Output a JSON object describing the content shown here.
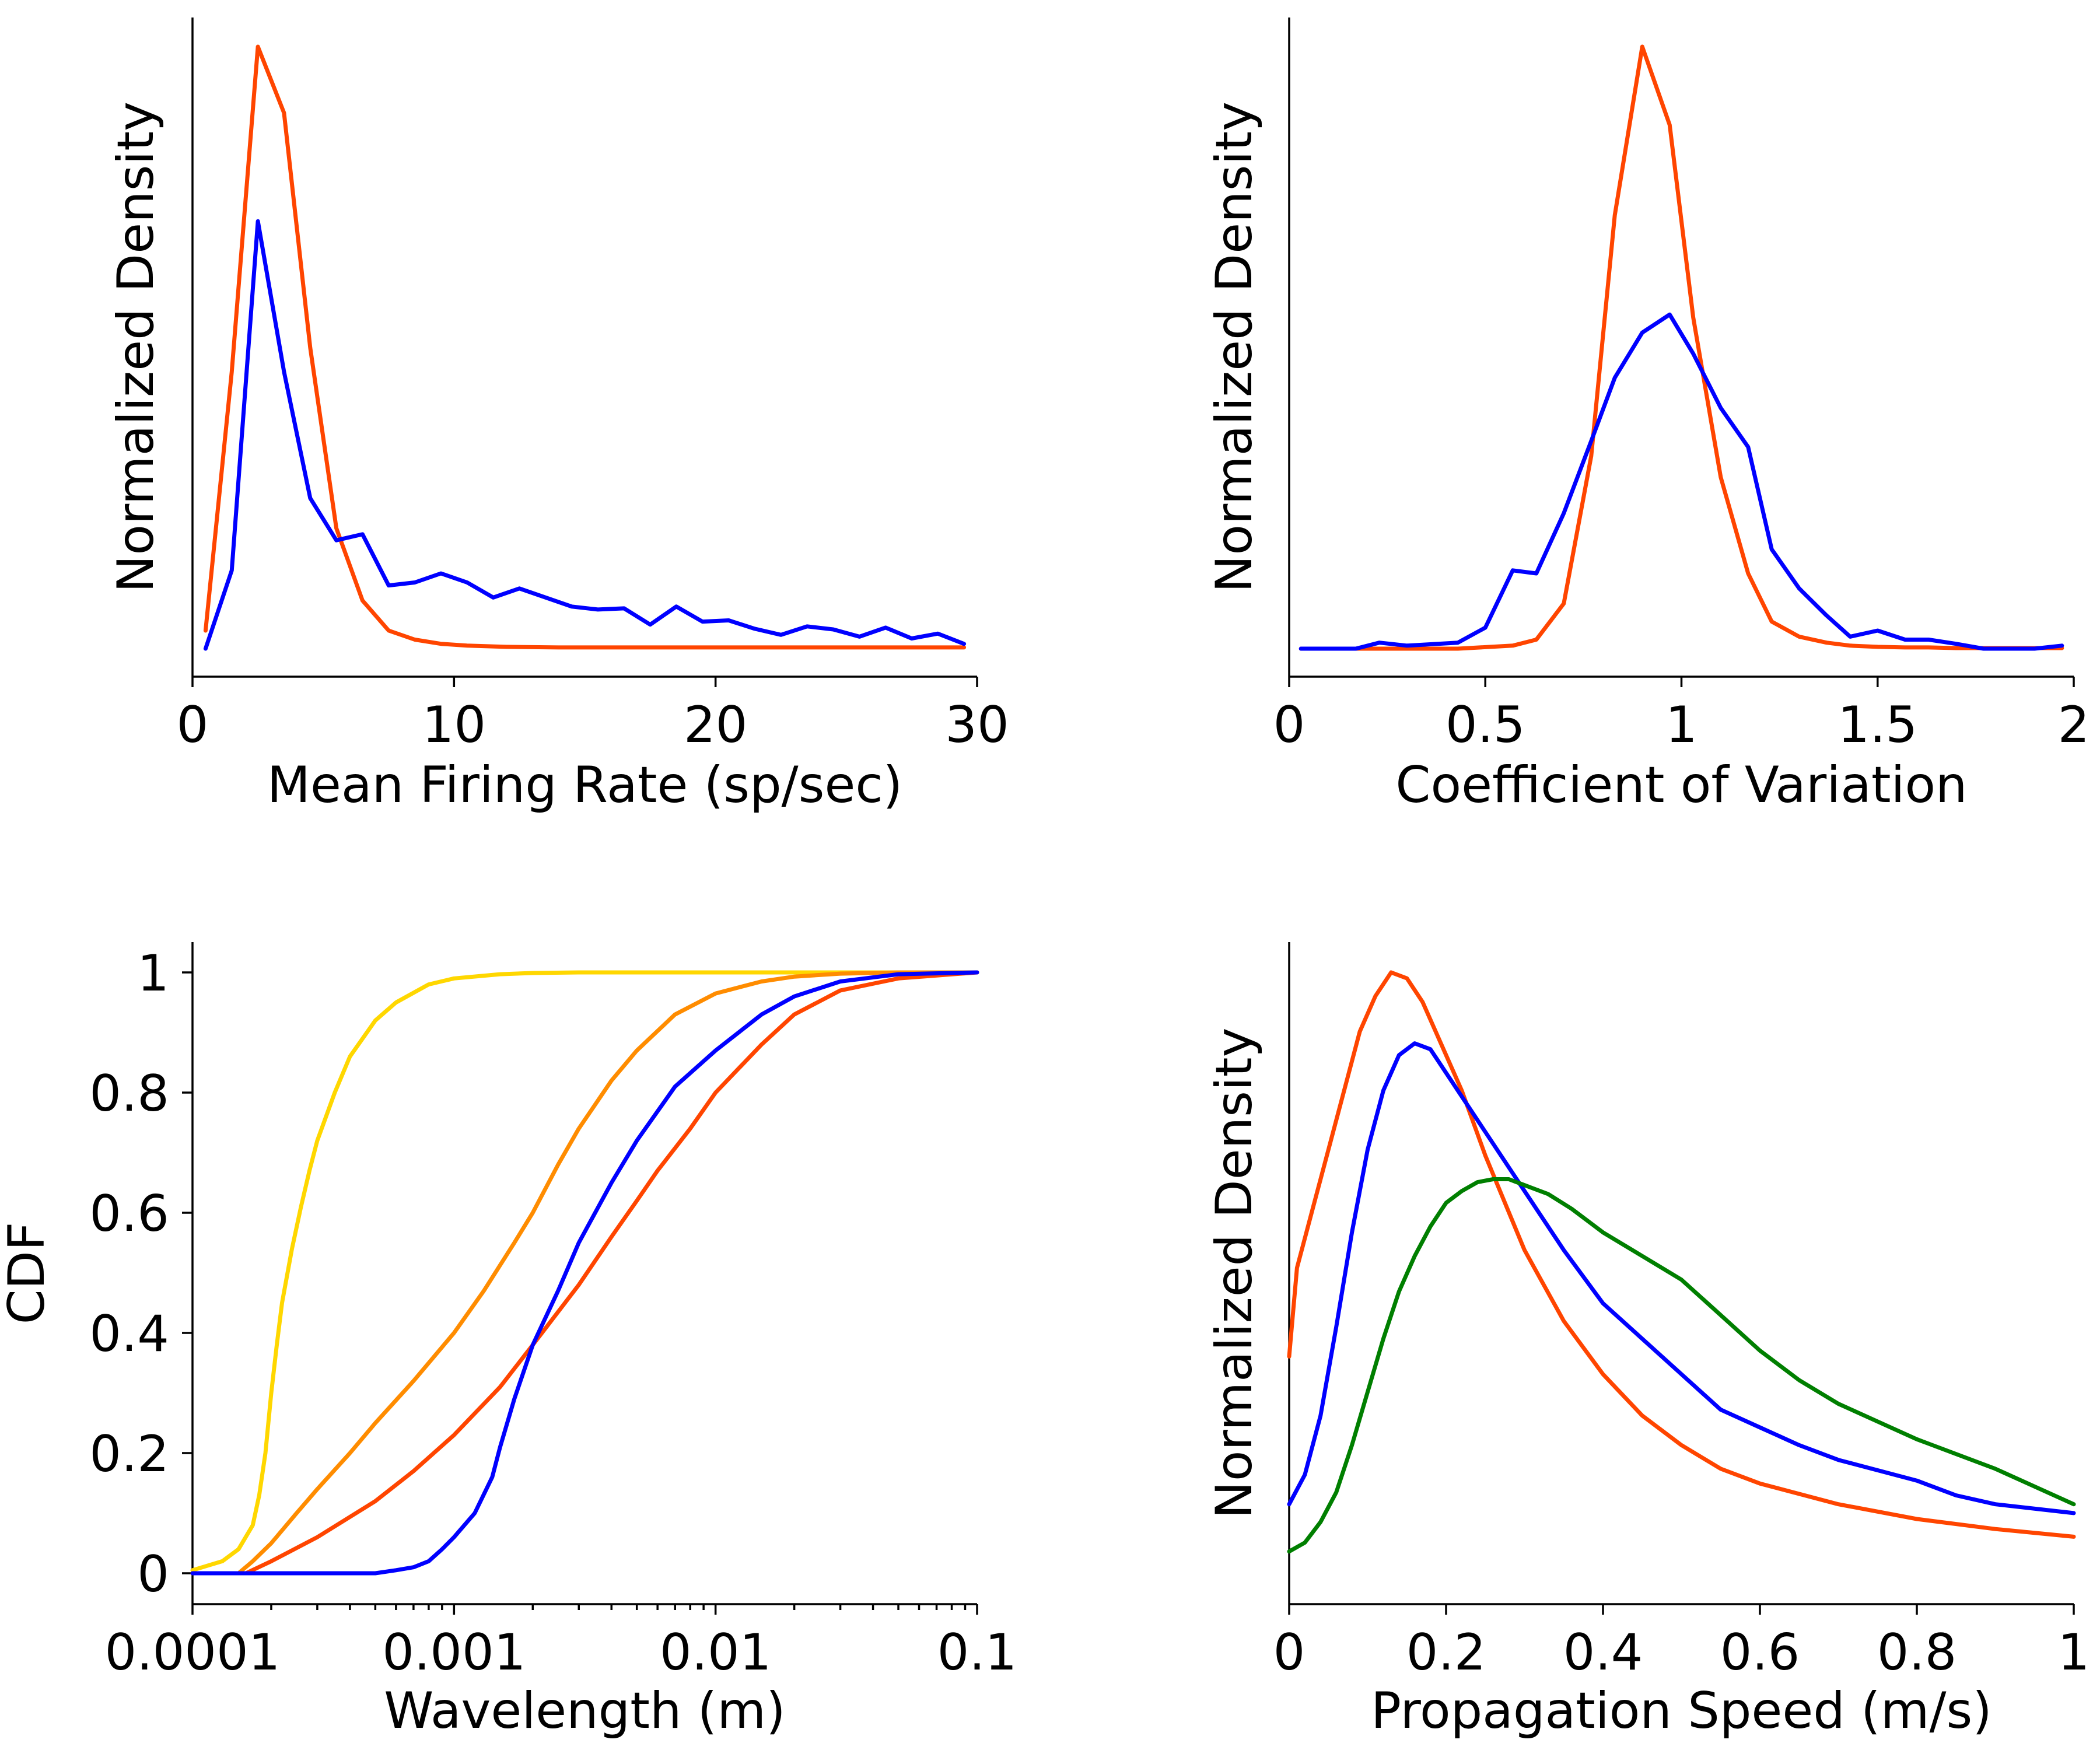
{
  "colors": {
    "red": "#ff4500",
    "blue": "#0000ff",
    "gold": "#ffd700",
    "orange": "#ff8c00",
    "green": "#007f00"
  },
  "chart_data": [
    {
      "id": "firing-rate",
      "type": "line",
      "xlabel": "Mean Firing Rate (sp/sec)",
      "ylabel": "Normalized Density",
      "xscale": "linear",
      "xlim": [
        0,
        30
      ],
      "ylim": [
        0,
        1.04
      ],
      "xticks": [
        0,
        10,
        20,
        30
      ],
      "xticklabels": [
        "0",
        "10",
        "20",
        "30"
      ],
      "yticks": [],
      "yticklabels": [],
      "series": [
        {
          "name": "red",
          "color": "#ff4500",
          "x": [
            0.5,
            1.5,
            2.5,
            3.5,
            4.5,
            5.5,
            6.5,
            7.5,
            8.5,
            9.5,
            10.5,
            12,
            14,
            16,
            18,
            20,
            22,
            24,
            26,
            28,
            29.5
          ],
          "y": [
            0.03,
            0.46,
            1.0,
            0.89,
            0.5,
            0.2,
            0.08,
            0.03,
            0.015,
            0.008,
            0.005,
            0.003,
            0.002,
            0.002,
            0.002,
            0.002,
            0.002,
            0.002,
            0.002,
            0.002,
            0.002
          ]
        },
        {
          "name": "blue",
          "color": "#0000ff",
          "x": [
            0.5,
            1.5,
            2.5,
            3.5,
            4.5,
            5.5,
            6.5,
            7.5,
            8.5,
            9.5,
            10.5,
            11.5,
            12.5,
            13.5,
            14.5,
            15.5,
            16.5,
            17.5,
            18.5,
            19.5,
            20.5,
            21.5,
            22.5,
            23.5,
            24.5,
            25.5,
            26.5,
            27.5,
            28.5,
            29.5
          ],
          "y": [
            0.0,
            0.13,
            0.71,
            0.46,
            0.25,
            0.18,
            0.19,
            0.105,
            0.11,
            0.125,
            0.11,
            0.085,
            0.1,
            0.085,
            0.07,
            0.065,
            0.067,
            0.04,
            0.07,
            0.045,
            0.047,
            0.033,
            0.023,
            0.037,
            0.032,
            0.02,
            0.035,
            0.017,
            0.025,
            0.008
          ]
        }
      ]
    },
    {
      "id": "cv",
      "type": "line",
      "xlabel": "Coefficient of Variation",
      "ylabel": "Normalized Density",
      "xscale": "linear",
      "xlim": [
        0,
        2
      ],
      "ylim": [
        0,
        1.04
      ],
      "xticks": [
        0,
        0.5,
        1,
        1.5,
        2
      ],
      "xticklabels": [
        "0",
        "0.5",
        "1",
        "1.5",
        "2"
      ],
      "yticks": [],
      "yticklabels": [],
      "series": [
        {
          "name": "red",
          "color": "#ff4500",
          "x": [
            0.03,
            0.17,
            0.3,
            0.43,
            0.57,
            0.63,
            0.7,
            0.77,
            0.83,
            0.9,
            0.97,
            1.03,
            1.1,
            1.17,
            1.23,
            1.3,
            1.37,
            1.43,
            1.5,
            1.57,
            1.63,
            1.7,
            1.77,
            1.9,
            1.97
          ],
          "y": [
            0.0,
            0.0,
            0.0,
            0.0,
            0.005,
            0.015,
            0.075,
            0.32,
            0.72,
            1.0,
            0.87,
            0.55,
            0.285,
            0.125,
            0.045,
            0.02,
            0.01,
            0.005,
            0.003,
            0.002,
            0.002,
            0.001,
            0.001,
            0.001,
            0.001
          ]
        },
        {
          "name": "blue",
          "color": "#0000ff",
          "x": [
            0.03,
            0.17,
            0.23,
            0.3,
            0.43,
            0.5,
            0.57,
            0.63,
            0.7,
            0.77,
            0.83,
            0.9,
            0.97,
            1.03,
            1.1,
            1.17,
            1.23,
            1.3,
            1.37,
            1.43,
            1.5,
            1.57,
            1.63,
            1.7,
            1.77,
            1.83,
            1.9,
            1.97
          ],
          "y": [
            0.0,
            0.0,
            0.01,
            0.005,
            0.01,
            0.035,
            0.13,
            0.125,
            0.225,
            0.345,
            0.45,
            0.525,
            0.555,
            0.49,
            0.4,
            0.335,
            0.165,
            0.1,
            0.055,
            0.02,
            0.03,
            0.015,
            0.015,
            0.008,
            0.0,
            0.0,
            0.0,
            0.005
          ]
        }
      ]
    },
    {
      "id": "wavelength",
      "type": "line",
      "xlabel": "Wavelength (m)",
      "ylabel": "CDF",
      "xscale": "log",
      "xlim": [
        0.0001,
        0.1
      ],
      "ylim": [
        -0.05,
        1.05
      ],
      "xticks": [
        0.0001,
        0.001,
        0.01,
        0.1
      ],
      "xticklabels": [
        "0.0001",
        "0.001",
        "0.01",
        "0.1"
      ],
      "yticks": [
        0,
        0.2,
        0.4,
        0.6,
        0.8,
        1
      ],
      "yticklabels": [
        "0",
        "0.2",
        "0.4",
        "0.6",
        "0.8",
        "1"
      ],
      "series": [
        {
          "name": "gold",
          "color": "#ffd700",
          "x": [
            0.0001,
            0.00013,
            0.00015,
            0.00017,
            0.00018,
            0.00019,
            0.0002,
            0.00021,
            0.00022,
            0.00024,
            0.00026,
            0.00028,
            0.0003,
            0.00035,
            0.0004,
            0.0005,
            0.0006,
            0.0008,
            0.001,
            0.0015,
            0.002,
            0.003,
            0.005,
            0.01,
            0.1
          ],
          "y": [
            0.005,
            0.02,
            0.04,
            0.08,
            0.13,
            0.2,
            0.3,
            0.38,
            0.45,
            0.54,
            0.61,
            0.67,
            0.72,
            0.8,
            0.86,
            0.92,
            0.95,
            0.98,
            0.99,
            0.997,
            0.999,
            1.0,
            1.0,
            1.0,
            1.0
          ]
        },
        {
          "name": "orange",
          "color": "#ff8c00",
          "x": [
            0.0001,
            0.00015,
            0.00017,
            0.0002,
            0.00025,
            0.0003,
            0.0004,
            0.0005,
            0.0007,
            0.001,
            0.0013,
            0.0017,
            0.002,
            0.0025,
            0.003,
            0.004,
            0.005,
            0.007,
            0.01,
            0.015,
            0.02,
            0.03,
            0.05,
            0.1
          ],
          "y": [
            0.0,
            0.0,
            0.02,
            0.05,
            0.1,
            0.14,
            0.2,
            0.25,
            0.32,
            0.4,
            0.47,
            0.55,
            0.6,
            0.68,
            0.74,
            0.82,
            0.87,
            0.93,
            0.965,
            0.985,
            0.993,
            0.998,
            1.0,
            1.0
          ]
        },
        {
          "name": "red",
          "color": "#ff4500",
          "x": [
            0.0001,
            0.00016,
            0.0002,
            0.0003,
            0.0005,
            0.0007,
            0.001,
            0.0015,
            0.002,
            0.003,
            0.004,
            0.005,
            0.006,
            0.008,
            0.01,
            0.015,
            0.02,
            0.03,
            0.05,
            0.1
          ],
          "y": [
            0.0,
            0.0,
            0.02,
            0.06,
            0.12,
            0.17,
            0.23,
            0.31,
            0.38,
            0.48,
            0.56,
            0.62,
            0.67,
            0.74,
            0.8,
            0.88,
            0.93,
            0.97,
            0.99,
            1.0
          ]
        },
        {
          "name": "blue",
          "color": "#0000ff",
          "x": [
            0.0001,
            0.0003,
            0.0005,
            0.0006,
            0.0007,
            0.0008,
            0.0009,
            0.001,
            0.0012,
            0.0014,
            0.0015,
            0.0017,
            0.002,
            0.0025,
            0.003,
            0.004,
            0.005,
            0.007,
            0.01,
            0.015,
            0.02,
            0.03,
            0.05,
            0.1
          ],
          "y": [
            0.0,
            0.0,
            0.0,
            0.005,
            0.01,
            0.02,
            0.04,
            0.06,
            0.1,
            0.16,
            0.21,
            0.29,
            0.38,
            0.47,
            0.55,
            0.65,
            0.72,
            0.81,
            0.87,
            0.93,
            0.96,
            0.985,
            0.997,
            1.0
          ]
        }
      ]
    },
    {
      "id": "propagation-speed",
      "type": "line",
      "xlabel": "Propagation Speed (m/s)",
      "ylabel": "Normalized Density",
      "xscale": "linear",
      "xlim": [
        0,
        1
      ],
      "ylim": [
        0,
        1.04
      ],
      "xticks": [
        0,
        0.2,
        0.4,
        0.6,
        0.8,
        1
      ],
      "xticklabels": [
        "0",
        "0.2",
        "0.4",
        "0.6",
        "0.8",
        "1"
      ],
      "yticks": [],
      "yticklabels": [],
      "series": [
        {
          "name": "red",
          "color": "#ff4500",
          "x": [
            0,
            0.01,
            0.03,
            0.05,
            0.07,
            0.09,
            0.11,
            0.13,
            0.15,
            0.17,
            0.19,
            0.22,
            0.25,
            0.3,
            0.35,
            0.4,
            0.45,
            0.5,
            0.55,
            0.6,
            0.7,
            0.8,
            0.9,
            1.0
          ],
          "y": [
            0.35,
            0.5,
            0.6,
            0.7,
            0.8,
            0.9,
            0.96,
            1.0,
            0.99,
            0.95,
            0.89,
            0.8,
            0.69,
            0.53,
            0.41,
            0.32,
            0.25,
            0.2,
            0.16,
            0.135,
            0.1,
            0.075,
            0.058,
            0.045
          ]
        },
        {
          "name": "blue",
          "color": "#0000ff",
          "x": [
            0,
            0.02,
            0.04,
            0.06,
            0.08,
            0.1,
            0.12,
            0.14,
            0.16,
            0.18,
            0.2,
            0.25,
            0.3,
            0.35,
            0.4,
            0.45,
            0.5,
            0.55,
            0.6,
            0.65,
            0.7,
            0.8,
            0.85,
            0.9,
            1.0
          ],
          "y": [
            0.1,
            0.15,
            0.25,
            0.4,
            0.56,
            0.7,
            0.8,
            0.86,
            0.88,
            0.87,
            0.83,
            0.73,
            0.63,
            0.53,
            0.44,
            0.38,
            0.32,
            0.26,
            0.23,
            0.2,
            0.175,
            0.14,
            0.115,
            0.1,
            0.085
          ]
        },
        {
          "name": "green",
          "color": "#007f00",
          "x": [
            0,
            0.02,
            0.04,
            0.06,
            0.08,
            0.1,
            0.12,
            0.14,
            0.16,
            0.18,
            0.2,
            0.22,
            0.24,
            0.26,
            0.28,
            0.3,
            0.33,
            0.36,
            0.4,
            0.45,
            0.5,
            0.55,
            0.6,
            0.65,
            0.7,
            0.75,
            0.8,
            0.85,
            0.9,
            0.95,
            1.0
          ],
          "y": [
            0.02,
            0.035,
            0.07,
            0.12,
            0.2,
            0.29,
            0.38,
            0.46,
            0.52,
            0.57,
            0.61,
            0.63,
            0.645,
            0.65,
            0.65,
            0.64,
            0.625,
            0.6,
            0.56,
            0.52,
            0.48,
            0.42,
            0.36,
            0.31,
            0.27,
            0.24,
            0.21,
            0.185,
            0.16,
            0.13,
            0.1
          ]
        }
      ]
    }
  ]
}
